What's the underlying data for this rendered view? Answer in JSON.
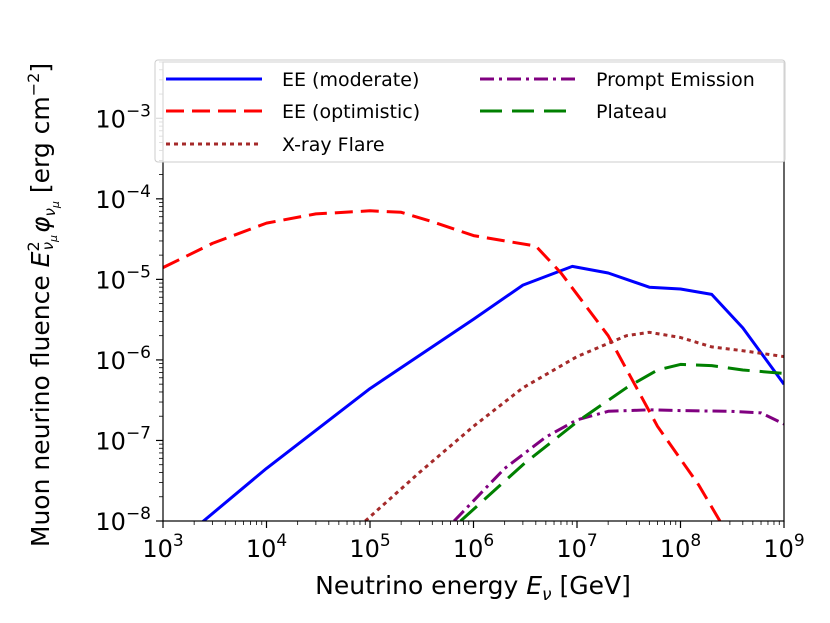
{
  "chart_data": {
    "type": "line",
    "title": "",
    "xlabel": "Neutrino energy E_ν [GeV]",
    "ylabel": "Muon neurino fluence E²_νμ φ_νμ [erg cm⁻²]",
    "xscale": "log",
    "yscale": "log",
    "xlim": [
      1000,
      1000000000
    ],
    "ylim": [
      1e-08,
      0.005
    ],
    "legend_position": "top",
    "x_ticks": [
      {
        "value": 1000,
        "base": "10",
        "exp": "3"
      },
      {
        "value": 10000,
        "base": "10",
        "exp": "4"
      },
      {
        "value": 100000,
        "base": "10",
        "exp": "5"
      },
      {
        "value": 1000000,
        "base": "10",
        "exp": "6"
      },
      {
        "value": 10000000,
        "base": "10",
        "exp": "7"
      },
      {
        "value": 100000000,
        "base": "10",
        "exp": "8"
      },
      {
        "value": 1000000000,
        "base": "10",
        "exp": "9"
      }
    ],
    "y_ticks": [
      {
        "value": 1e-08,
        "base": "10",
        "exp": "−8"
      },
      {
        "value": 1e-07,
        "base": "10",
        "exp": "−7"
      },
      {
        "value": 1e-06,
        "base": "10",
        "exp": "−6"
      },
      {
        "value": 1e-05,
        "base": "10",
        "exp": "−5"
      },
      {
        "value": 0.0001,
        "base": "10",
        "exp": "−4"
      },
      {
        "value": 0.001,
        "base": "10",
        "exp": "−3"
      }
    ],
    "series": [
      {
        "name": "EE (moderate)",
        "color": "#0000ff",
        "dash": "solid",
        "x": [
          2000,
          10000,
          100000,
          1000000,
          3000000,
          9000000,
          20000000,
          50000000,
          100000000,
          200000000,
          400000000,
          1000000000
        ],
        "y": [
          8e-09,
          4.5e-08,
          4.4e-07,
          3.2e-06,
          8.5e-06,
          1.45e-05,
          1.2e-05,
          8e-06,
          7.6e-06,
          6.5e-06,
          2.5e-06,
          5e-07
        ]
      },
      {
        "name": "EE (optimistic)",
        "color": "#ff0000",
        "dash": "dashed",
        "x": [
          1000,
          3000,
          10000,
          30000,
          100000,
          200000,
          400000,
          1000000,
          2000000,
          4000000,
          7000000,
          20000000,
          60000000,
          150000000,
          240000000
        ],
        "y": [
          1.4e-05,
          2.8e-05,
          5e-05,
          6.5e-05,
          7.1e-05,
          6.8e-05,
          5.2e-05,
          3.5e-05,
          3e-05,
          2.6e-05,
          1.2e-05,
          2e-06,
          1.5e-07,
          2.8e-08,
          1e-08
        ]
      },
      {
        "name": "X-ray Flare",
        "color": "#a52a2a",
        "dash": "dotted",
        "x": [
          90000,
          300000,
          1000000,
          3000000,
          10000000,
          30000000,
          50000000,
          100000000,
          200000000,
          400000000,
          1000000000
        ],
        "y": [
          1e-08,
          4e-08,
          1.5e-07,
          4.5e-07,
          1.1e-06,
          2e-06,
          2.2e-06,
          1.9e-06,
          1.45e-06,
          1.3e-06,
          1.1e-06
        ]
      },
      {
        "name": "Prompt Emission",
        "color": "#800080",
        "dash": "dashdot",
        "x": [
          650000,
          2000000,
          5000000,
          10000000,
          20000000,
          50000000,
          100000000,
          300000000,
          600000000,
          1000000000
        ],
        "y": [
          1e-08,
          4.5e-08,
          1.1e-07,
          1.8e-07,
          2.3e-07,
          2.4e-07,
          2.35e-07,
          2.3e-07,
          2.2e-07,
          1.6e-07
        ]
      },
      {
        "name": "Plateau",
        "color": "#008000",
        "dash": "longdash",
        "x": [
          750000,
          3000000,
          10000000,
          30000000,
          60000000,
          100000000,
          200000000,
          400000000,
          1000000000
        ],
        "y": [
          1e-08,
          5e-08,
          1.7e-07,
          4.5e-07,
          7.5e-07,
          8.8e-07,
          8.5e-07,
          7.5e-07,
          6.8e-07
        ]
      }
    ]
  }
}
